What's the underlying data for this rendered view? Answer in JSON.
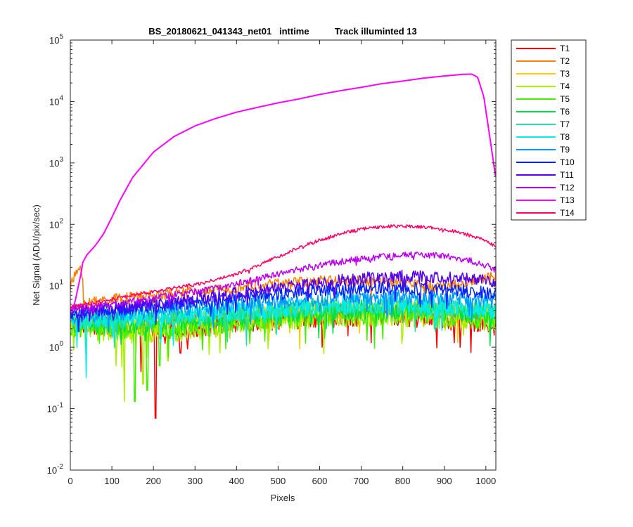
{
  "chart_data": {
    "type": "line",
    "title": "BS_20180621_041343_net01   inttime          Track illuminted 13",
    "xlabel": "Pixels",
    "ylabel": "Net Signal (ADU/pix/sec)",
    "xlim": [
      0,
      1024
    ],
    "ylim": [
      0.01,
      100000
    ],
    "yscale": "log",
    "grid": false,
    "legend_position": "outside-top-right",
    "x_ticks": [
      {
        "value": 0,
        "label": "0"
      },
      {
        "value": 100,
        "label": "100"
      },
      {
        "value": 200,
        "label": "200"
      },
      {
        "value": 300,
        "label": "300"
      },
      {
        "value": 400,
        "label": "400"
      },
      {
        "value": 500,
        "label": "500"
      },
      {
        "value": 600,
        "label": "600"
      },
      {
        "value": 700,
        "label": "700"
      },
      {
        "value": 800,
        "label": "800"
      },
      {
        "value": 900,
        "label": "900"
      },
      {
        "value": 1000,
        "label": "1000"
      }
    ],
    "y_ticks": [
      {
        "value": 0.01,
        "base": "10",
        "exp": "-2"
      },
      {
        "value": 0.1,
        "base": "10",
        "exp": "-1"
      },
      {
        "value": 1,
        "base": "10",
        "exp": "0"
      },
      {
        "value": 10,
        "base": "10",
        "exp": "1"
      },
      {
        "value": 100,
        "base": "10",
        "exp": "2"
      },
      {
        "value": 1000,
        "base": "10",
        "exp": "3"
      },
      {
        "value": 10000,
        "base": "10",
        "exp": "4"
      },
      {
        "value": 100000,
        "base": "10",
        "exp": "5"
      }
    ],
    "series": [
      {
        "name": "T1",
        "color": "#ff0000",
        "x": [
          0,
          50,
          100,
          150,
          200,
          250,
          300,
          350,
          400,
          450,
          500,
          550,
          600,
          650,
          700,
          750,
          800,
          850,
          900,
          950,
          1000,
          1024
        ],
        "y": [
          2.5,
          2.5,
          2.3,
          2.0,
          1.9,
          2.0,
          2.2,
          2.4,
          2.6,
          2.8,
          3.0,
          3.1,
          3.2,
          3.3,
          3.4,
          3.4,
          3.3,
          3.2,
          3.0,
          2.8,
          2.5,
          2.3
        ],
        "noise": 0.55,
        "dips": [
          {
            "x": 205,
            "y": 0.07
          },
          {
            "x": 170,
            "y": 0.4
          },
          {
            "x": 265,
            "y": 0.8
          },
          {
            "x": 980,
            "y": 1.8
          }
        ]
      },
      {
        "name": "T2",
        "color": "#ff8000",
        "x": [
          0,
          20,
          28,
          32,
          50,
          100,
          150,
          200,
          250,
          300,
          350,
          400,
          450,
          500,
          550,
          600,
          650,
          700,
          750,
          800,
          850,
          900,
          950,
          1000,
          1024
        ],
        "y": [
          10,
          19,
          22,
          5,
          5.5,
          6,
          6.5,
          7,
          7.5,
          8,
          8.5,
          9.5,
          10.5,
          11,
          11.5,
          12,
          12,
          12,
          11.5,
          11,
          10.5,
          10,
          11,
          13,
          15
        ],
        "noise": 0.25,
        "dips": []
      },
      {
        "name": "T3",
        "color": "#ffcc00",
        "x": [
          0,
          50,
          100,
          150,
          200,
          250,
          300,
          350,
          400,
          450,
          500,
          550,
          600,
          650,
          700,
          750,
          800,
          850,
          900,
          950,
          1000,
          1024
        ],
        "y": [
          2.6,
          2.6,
          2.5,
          2.5,
          2.6,
          2.7,
          2.8,
          3.0,
          3.2,
          3.4,
          3.6,
          3.8,
          4.0,
          4.2,
          4.3,
          4.3,
          4.3,
          4.2,
          4.0,
          3.8,
          3.6,
          3.5
        ],
        "noise": 0.5,
        "dips": []
      },
      {
        "name": "T4",
        "color": "#aaee00",
        "x": [
          0,
          50,
          100,
          150,
          200,
          250,
          300,
          350,
          400,
          450,
          500,
          550,
          600,
          650,
          700,
          750,
          800,
          850,
          900,
          950,
          1000,
          1024
        ],
        "y": [
          2.0,
          2.0,
          1.9,
          1.8,
          1.8,
          1.9,
          2.0,
          2.2,
          2.4,
          2.6,
          2.8,
          3.0,
          3.1,
          3.2,
          3.3,
          3.3,
          3.3,
          3.2,
          3.1,
          3.0,
          2.8,
          2.7
        ],
        "noise": 0.55,
        "dips": [
          {
            "x": 8,
            "y": 0.9
          },
          {
            "x": 130,
            "y": 0.13
          },
          {
            "x": 110,
            "y": 0.5
          },
          {
            "x": 175,
            "y": 0.25
          },
          {
            "x": 235,
            "y": 0.6
          }
        ]
      },
      {
        "name": "T5",
        "color": "#44ee00",
        "x": [
          0,
          50,
          100,
          150,
          200,
          250,
          300,
          350,
          400,
          450,
          500,
          550,
          600,
          650,
          700,
          750,
          800,
          850,
          900,
          950,
          1000,
          1024
        ],
        "y": [
          2.2,
          2.1,
          2.0,
          2.0,
          2.1,
          2.2,
          2.3,
          2.5,
          2.7,
          2.9,
          3.1,
          3.3,
          3.4,
          3.5,
          3.6,
          3.6,
          3.6,
          3.5,
          3.4,
          3.2,
          3.0,
          2.9
        ],
        "noise": 0.55,
        "dips": [
          {
            "x": 155,
            "y": 0.13
          },
          {
            "x": 185,
            "y": 0.2
          },
          {
            "x": 215,
            "y": 0.5
          }
        ]
      },
      {
        "name": "T6",
        "color": "#00dd44",
        "x": [
          0,
          50,
          100,
          150,
          200,
          250,
          300,
          350,
          400,
          450,
          500,
          550,
          600,
          650,
          700,
          750,
          800,
          850,
          900,
          950,
          1000,
          1024
        ],
        "y": [
          2.6,
          2.5,
          2.5,
          2.5,
          2.6,
          2.7,
          2.9,
          3.1,
          3.3,
          3.5,
          3.7,
          3.9,
          4.0,
          4.1,
          4.2,
          4.2,
          4.2,
          4.1,
          3.9,
          3.7,
          3.5,
          3.4
        ],
        "noise": 0.5,
        "dips": []
      },
      {
        "name": "T7",
        "color": "#22ddaa",
        "x": [
          0,
          50,
          100,
          150,
          200,
          250,
          300,
          350,
          400,
          450,
          500,
          550,
          600,
          650,
          700,
          750,
          800,
          850,
          900,
          950,
          1000,
          1024
        ],
        "y": [
          2.8,
          2.8,
          2.8,
          2.9,
          3.0,
          3.1,
          3.3,
          3.5,
          3.7,
          3.9,
          4.1,
          4.3,
          4.5,
          4.6,
          4.7,
          4.7,
          4.7,
          4.6,
          4.4,
          4.2,
          4.0,
          3.9
        ],
        "noise": 0.45,
        "dips": []
      },
      {
        "name": "T8",
        "color": "#00eeee",
        "x": [
          0,
          50,
          100,
          150,
          200,
          250,
          300,
          350,
          400,
          450,
          500,
          550,
          600,
          650,
          700,
          750,
          800,
          850,
          900,
          950,
          1000,
          1024
        ],
        "y": [
          2.9,
          2.9,
          3.0,
          3.1,
          3.2,
          3.3,
          3.5,
          3.7,
          3.9,
          4.1,
          4.3,
          4.5,
          4.7,
          4.8,
          4.9,
          4.9,
          4.9,
          4.8,
          4.6,
          4.4,
          4.2,
          4.1
        ],
        "noise": 0.45,
        "dips": [
          {
            "x": 38,
            "y": 0.32
          }
        ]
      },
      {
        "name": "T9",
        "color": "#0099ff",
        "x": [
          0,
          50,
          100,
          150,
          200,
          250,
          300,
          350,
          400,
          450,
          500,
          550,
          600,
          650,
          700,
          750,
          800,
          850,
          900,
          950,
          1000,
          1024
        ],
        "y": [
          3.2,
          3.3,
          3.5,
          3.7,
          3.9,
          4.1,
          4.4,
          4.7,
          5.0,
          5.3,
          5.6,
          5.9,
          6.2,
          6.4,
          6.5,
          6.5,
          6.5,
          6.4,
          6.2,
          6.0,
          5.8,
          5.7
        ],
        "noise": 0.35,
        "dips": []
      },
      {
        "name": "T10",
        "color": "#0022ff",
        "x": [
          0,
          50,
          100,
          150,
          200,
          250,
          300,
          350,
          400,
          450,
          500,
          550,
          600,
          650,
          700,
          750,
          800,
          850,
          900,
          950,
          1000,
          1024
        ],
        "y": [
          3.6,
          3.8,
          4.0,
          4.3,
          4.6,
          5.0,
          5.4,
          5.9,
          6.4,
          6.9,
          7.4,
          7.9,
          8.4,
          8.8,
          9.1,
          9.2,
          9.2,
          9.0,
          8.7,
          8.3,
          7.9,
          7.7
        ],
        "noise": 0.3,
        "dips": []
      },
      {
        "name": "T11",
        "color": "#5500ee",
        "x": [
          0,
          50,
          100,
          150,
          200,
          250,
          300,
          350,
          400,
          450,
          500,
          550,
          600,
          650,
          700,
          750,
          800,
          850,
          900,
          950,
          1000,
          1024
        ],
        "y": [
          3.8,
          4.0,
          4.3,
          4.7,
          5.1,
          5.6,
          6.1,
          6.8,
          7.5,
          8.3,
          9.1,
          10.0,
          11.0,
          12.0,
          13.0,
          13.8,
          14.3,
          14.3,
          13.8,
          13.0,
          12.0,
          11.0
        ],
        "noise": 0.3,
        "dips": []
      },
      {
        "name": "T12",
        "color": "#bb00ee",
        "x": [
          0,
          50,
          100,
          150,
          200,
          250,
          300,
          350,
          400,
          450,
          500,
          550,
          600,
          650,
          700,
          750,
          800,
          850,
          900,
          950,
          1000,
          1024
        ],
        "y": [
          4.2,
          4.6,
          5.0,
          5.6,
          6.3,
          7.1,
          8.0,
          9.1,
          10.8,
          13.0,
          15.5,
          18.5,
          21.5,
          24.5,
          27.5,
          30.0,
          31.5,
          32.0,
          30.5,
          27.0,
          21.5,
          18.0
        ],
        "noise": 0.15,
        "dips": []
      },
      {
        "name": "T13",
        "color": "#ff00ff",
        "x": [
          0,
          10,
          25,
          30,
          40,
          60,
          80,
          100,
          120,
          150,
          200,
          250,
          300,
          350,
          400,
          450,
          500,
          550,
          600,
          650,
          700,
          750,
          800,
          850,
          900,
          940,
          965,
          980,
          995,
          1010,
          1024
        ],
        "y": [
          4.0,
          5.0,
          15.0,
          24.0,
          32.0,
          45.0,
          70.0,
          130.0,
          250.0,
          580.0,
          1500.0,
          2700.0,
          4000.0,
          5300.0,
          6700.0,
          8000.0,
          9500.0,
          11000.0,
          13000.0,
          15000.0,
          17000.0,
          19500.0,
          21500.0,
          24000.0,
          26000.0,
          27500.0,
          28000.0,
          25000.0,
          12000.0,
          2500.0,
          550.0
        ],
        "noise": 0.0,
        "dips": []
      },
      {
        "name": "T14",
        "color": "#ff0066",
        "x": [
          0,
          50,
          100,
          150,
          200,
          250,
          300,
          350,
          400,
          450,
          500,
          550,
          600,
          650,
          700,
          750,
          800,
          850,
          900,
          950,
          1000,
          1024
        ],
        "y": [
          4.5,
          5.2,
          6.0,
          7.0,
          8.0,
          9.2,
          10.5,
          12.5,
          15.5,
          21.0,
          30.0,
          42.0,
          55.0,
          70.0,
          83.0,
          92.0,
          94.0,
          91.0,
          83.0,
          70.0,
          55.0,
          42.0
        ],
        "noise": 0.08,
        "dips": []
      }
    ]
  }
}
